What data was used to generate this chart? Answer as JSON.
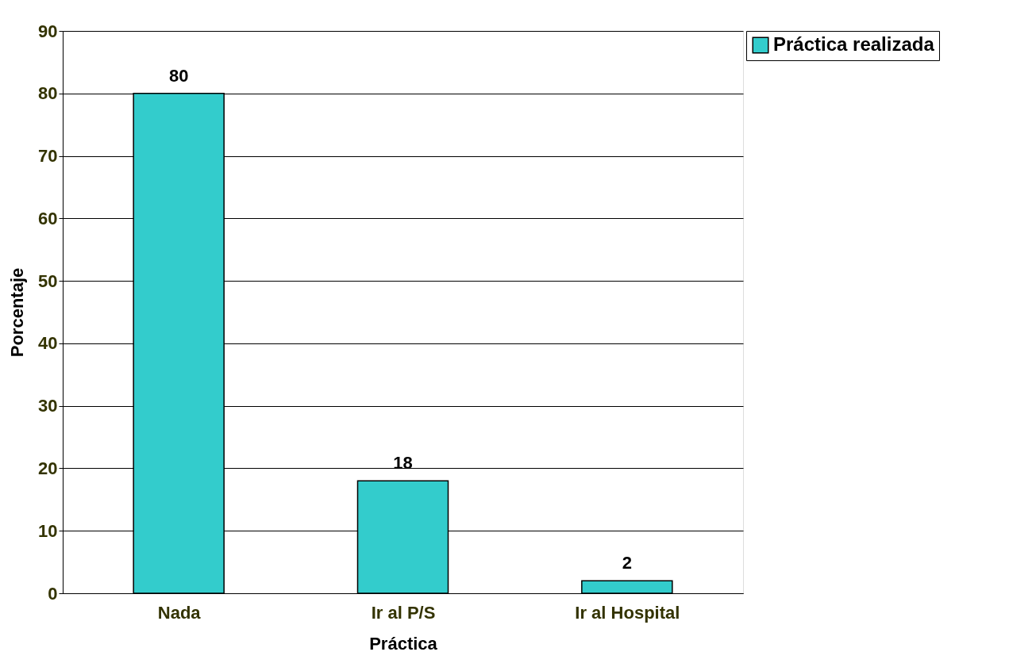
{
  "chart_data": {
    "type": "bar",
    "xlabel": "Práctica",
    "ylabel": "Porcentaje",
    "categories": [
      "Nada",
      "Ir al P/S",
      "Ir al Hospital"
    ],
    "series": [
      {
        "name": "Práctica realizada",
        "color": "#33cccc",
        "values": [
          80,
          18,
          2
        ]
      }
    ],
    "ylim": [
      0,
      90
    ],
    "yticks": [
      0,
      10,
      20,
      30,
      40,
      50,
      60,
      70,
      80,
      90
    ],
    "grid": "y",
    "legend": "right",
    "data_labels": true
  }
}
